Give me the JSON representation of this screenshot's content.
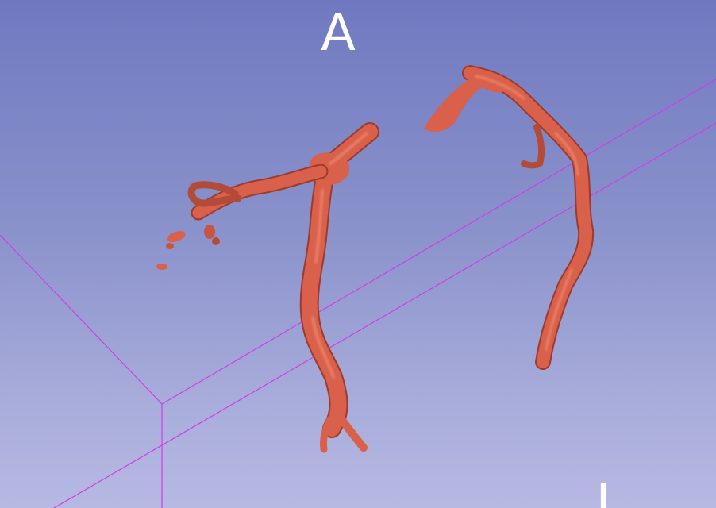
{
  "viewer": {
    "background_top": "#7079c0",
    "background_bottom": "#b6b9e2",
    "box_color": "#d23ce8",
    "vessel_color": "#d9604a",
    "vessel_shadow": "#9c3b2c",
    "vessel_highlight": "#ee8a6e"
  },
  "orientation": {
    "top_label": "A",
    "corner_label": "I"
  }
}
